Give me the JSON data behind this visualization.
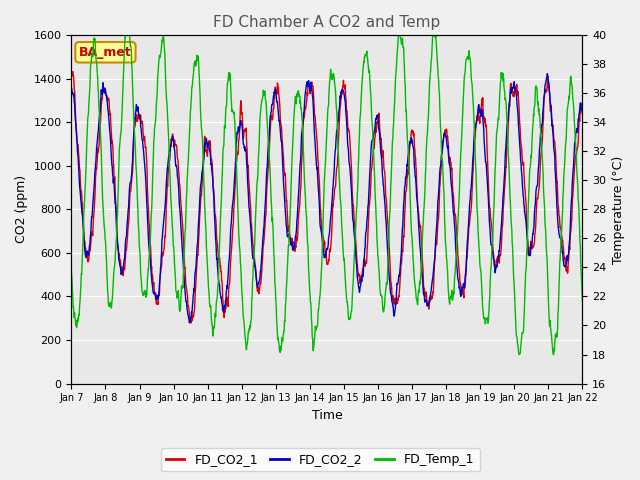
{
  "title": "FD Chamber A CO2 and Temp",
  "xlabel": "Time",
  "ylabel_left": "CO2 (ppm)",
  "ylabel_right": "Temperature (°C)",
  "ylim_left": [
    0,
    1600
  ],
  "ylim_right": [
    16,
    40
  ],
  "yticks_left": [
    0,
    200,
    400,
    600,
    800,
    1000,
    1200,
    1400,
    1600
  ],
  "yticks_right": [
    16,
    18,
    20,
    22,
    24,
    26,
    28,
    30,
    32,
    34,
    36,
    38,
    40
  ],
  "x_labels": [
    "Jan 7",
    "Jan 8",
    "Jan 9",
    "Jan 10",
    "Jan 11",
    "Jan 12",
    "Jan 13",
    "Jan 14",
    "Jan 15",
    "Jan 16",
    "Jan 17",
    "Jan 18",
    "Jan 19",
    "Jan 20",
    "Jan 21",
    "Jan 22"
  ],
  "colors": {
    "FD_CO2_1": "#dd0000",
    "FD_CO2_2": "#0000cc",
    "FD_Temp_1": "#00bb00"
  },
  "legend_label": "BA_met",
  "legend_box_color": "#ffff99",
  "legend_box_edgecolor": "#cc8800",
  "plot_bg_color": "#e8e8e8",
  "fig_bg_color": "#f0f0f0",
  "grid_color": "#ffffff",
  "line_width": 1.0,
  "n_days": 15,
  "pts_per_day": 96
}
